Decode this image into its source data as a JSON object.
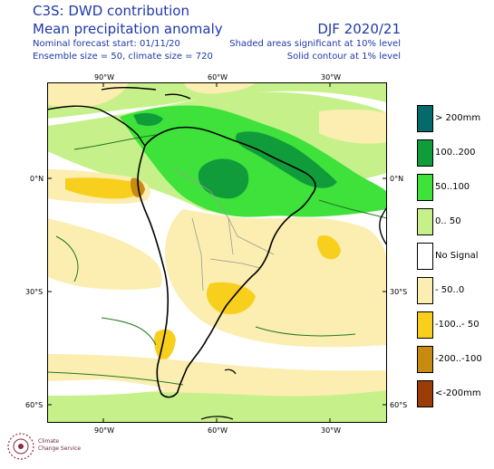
{
  "header": {
    "title_line1": "C3S: DWD contribution",
    "title_line2": "Mean precipitation anomaly",
    "forecast_start": "Nominal forecast start: 01/11/20",
    "ensemble": "Ensemble size = 50, climate size = 720",
    "season": "DJF 2020/21",
    "note_shaded": "Shaded areas significant at 10% level",
    "note_contour": "Solid contour at 1% level"
  },
  "axes": {
    "top_lon": [
      "90°W",
      "60°W",
      "30°W"
    ],
    "bottom_lon": [
      "90°W",
      "60°W",
      "30°W"
    ],
    "left_lat": [
      "0°N",
      "30°S",
      "60°S"
    ],
    "right_lat": [
      "0°N",
      "30°S",
      "60°S"
    ]
  },
  "legend": [
    {
      "label": "> 200mm",
      "color": "#056a6a"
    },
    {
      "label": "100..200",
      "color": "#119c3b"
    },
    {
      "label": "50..100",
      "color": "#3ee23a"
    },
    {
      "label": "0.. 50",
      "color": "#c6f18a"
    },
    {
      "label": "No Signal",
      "color": "#ffffff"
    },
    {
      "label": "- 50..0",
      "color": "#fbeeb0"
    },
    {
      "label": "-100..- 50",
      "color": "#f9cf1d"
    },
    {
      "label": "-200..-100",
      "color": "#c98a12"
    },
    {
      "label": "<-200mm",
      "color": "#9a3d08"
    }
  ],
  "logo": {
    "line1": "Climate",
    "line2": "Change Service"
  },
  "colors": {
    "header_text": "#1f39a8",
    "coast": "#000000",
    "contour": "#1f7a1f",
    "borders": "#9a9a9a"
  }
}
